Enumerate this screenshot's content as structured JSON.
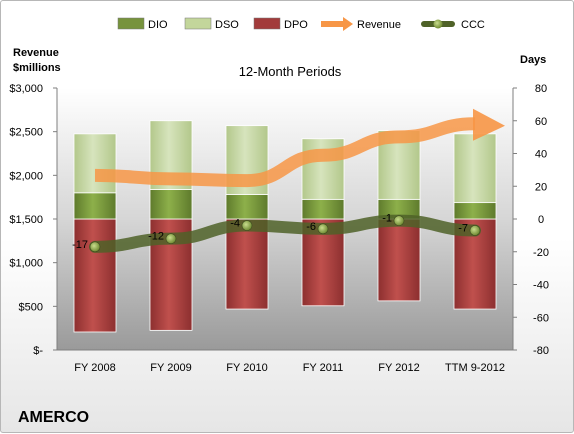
{
  "chart_data": {
    "type": "bar",
    "title": "12-Month Periods",
    "company": "AMERCO",
    "left_axis_label": [
      "Revenue",
      "$millions"
    ],
    "right_axis_label": "Days",
    "categories": [
      "FY 2008",
      "FY 2009",
      "FY 2010",
      "FY 2011",
      "FY 2012",
      "TTM 9-2012"
    ],
    "left_ticks": [
      "$-",
      "$500",
      "$1,000",
      "$1,500",
      "$2,000",
      "$2,500",
      "$3,000"
    ],
    "right_ticks": [
      "-80",
      "-60",
      "-40",
      "-20",
      "0",
      "20",
      "40",
      "60",
      "80"
    ],
    "ylim_right": [
      -80,
      80
    ],
    "ylim_left": [
      0,
      3000
    ],
    "legend": [
      {
        "name": "DIO",
        "kind": "bar",
        "color": "#77933c"
      },
      {
        "name": "DSO",
        "kind": "bar",
        "color": "#c3d69b"
      },
      {
        "name": "DPO",
        "kind": "bar",
        "color": "#a23b3b"
      },
      {
        "name": "Revenue",
        "kind": "arrow",
        "color": "#f79646"
      },
      {
        "name": "CCC",
        "kind": "line",
        "color": "#4f6228"
      }
    ],
    "series": [
      {
        "name": "DPO",
        "values": [
          -69,
          -68,
          -55,
          -53,
          -50,
          -55
        ]
      },
      {
        "name": "DIO",
        "values": [
          16,
          18,
          15,
          12,
          12,
          10
        ]
      },
      {
        "name": "DSO",
        "values": [
          36,
          42,
          42,
          37,
          42,
          42
        ]
      },
      {
        "name": "CCC",
        "values": [
          -17,
          -12,
          -4,
          -6,
          -1,
          -7
        ]
      },
      {
        "name": "Revenue",
        "values": [
          2000,
          1960,
          1940,
          2230,
          2440,
          2590
        ]
      }
    ],
    "ccc_labels": [
      "-17",
      "-12",
      "-4",
      "-6",
      "-1",
      "-7"
    ],
    "grid": false
  }
}
